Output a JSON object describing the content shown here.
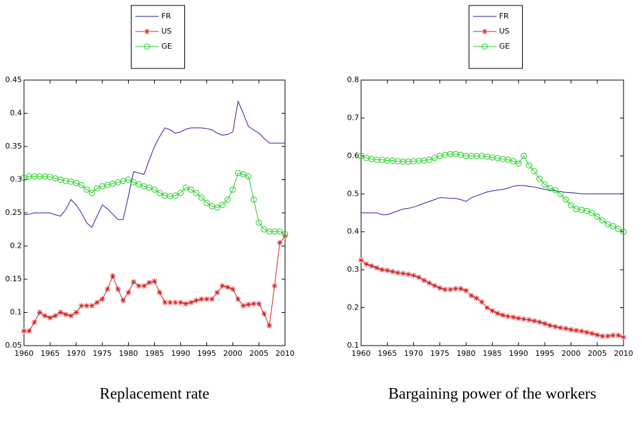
{
  "chart_data": [
    {
      "type": "line",
      "title": "Replacement rate",
      "legend": "top",
      "x": [
        1960,
        1961,
        1962,
        1963,
        1964,
        1965,
        1966,
        1967,
        1968,
        1969,
        1970,
        1971,
        1972,
        1973,
        1974,
        1975,
        1976,
        1977,
        1978,
        1979,
        1980,
        1981,
        1982,
        1983,
        1984,
        1985,
        1986,
        1987,
        1988,
        1989,
        1990,
        1991,
        1992,
        1993,
        1994,
        1995,
        1996,
        1997,
        1998,
        1999,
        2000,
        2001,
        2002,
        2003,
        2004,
        2005,
        2006,
        2007,
        2008,
        2009,
        2010
      ],
      "xlim": [
        1960,
        2010
      ],
      "xticks": [
        1960,
        1965,
        1970,
        1975,
        1980,
        1985,
        1990,
        1995,
        2000,
        2005,
        2010
      ],
      "ylim": [
        0.05,
        0.45
      ],
      "yticks": [
        0.05,
        0.1,
        0.15,
        0.2,
        0.25,
        0.3,
        0.35,
        0.4,
        0.45
      ],
      "series": [
        {
          "name": "FR",
          "color": "#1f1fa0",
          "marker": "none",
          "values": [
            0.247,
            0.248,
            0.25,
            0.25,
            0.25,
            0.25,
            0.247,
            0.245,
            0.255,
            0.27,
            0.262,
            0.25,
            0.235,
            0.228,
            0.245,
            0.262,
            0.256,
            0.248,
            0.24,
            0.24,
            0.275,
            0.312,
            0.31,
            0.308,
            0.33,
            0.35,
            0.365,
            0.378,
            0.375,
            0.37,
            0.372,
            0.376,
            0.378,
            0.378,
            0.378,
            0.377,
            0.375,
            0.37,
            0.367,
            0.368,
            0.372,
            0.418,
            0.4,
            0.38,
            0.375,
            0.37,
            0.362,
            0.355,
            0.355,
            0.355,
            0.355
          ]
        },
        {
          "name": "US",
          "color": "#d22020",
          "marker": "star",
          "values": [
            0.072,
            0.072,
            0.085,
            0.1,
            0.095,
            0.092,
            0.095,
            0.1,
            0.097,
            0.095,
            0.1,
            0.11,
            0.11,
            0.11,
            0.115,
            0.12,
            0.135,
            0.155,
            0.135,
            0.118,
            0.13,
            0.146,
            0.14,
            0.14,
            0.145,
            0.147,
            0.13,
            0.115,
            0.115,
            0.115,
            0.115,
            0.113,
            0.115,
            0.118,
            0.12,
            0.12,
            0.12,
            0.13,
            0.14,
            0.138,
            0.135,
            0.12,
            0.11,
            0.112,
            0.113,
            0.113,
            0.098,
            0.08,
            0.14,
            0.205,
            0.215
          ]
        },
        {
          "name": "GE",
          "color": "#22cc22",
          "marker": "circle",
          "values": [
            0.303,
            0.305,
            0.305,
            0.305,
            0.305,
            0.304,
            0.302,
            0.3,
            0.298,
            0.297,
            0.295,
            0.292,
            0.285,
            0.28,
            0.287,
            0.29,
            0.292,
            0.294,
            0.296,
            0.298,
            0.3,
            0.296,
            0.293,
            0.29,
            0.288,
            0.285,
            0.28,
            0.276,
            0.275,
            0.276,
            0.28,
            0.288,
            0.285,
            0.28,
            0.273,
            0.265,
            0.26,
            0.258,
            0.262,
            0.27,
            0.285,
            0.31,
            0.308,
            0.305,
            0.27,
            0.235,
            0.225,
            0.222,
            0.222,
            0.222,
            0.218
          ]
        }
      ]
    },
    {
      "type": "line",
      "title": "Bargaining power of the workers",
      "legend": "top",
      "x": [
        1960,
        1961,
        1962,
        1963,
        1964,
        1965,
        1966,
        1967,
        1968,
        1969,
        1970,
        1971,
        1972,
        1973,
        1974,
        1975,
        1976,
        1977,
        1978,
        1979,
        1980,
        1981,
        1982,
        1983,
        1984,
        1985,
        1986,
        1987,
        1988,
        1989,
        1990,
        1991,
        1992,
        1993,
        1994,
        1995,
        1996,
        1997,
        1998,
        1999,
        2000,
        2001,
        2002,
        2003,
        2004,
        2005,
        2006,
        2007,
        2008,
        2009,
        2010
      ],
      "xlim": [
        1960,
        2010
      ],
      "xticks": [
        1960,
        1965,
        1970,
        1975,
        1980,
        1985,
        1990,
        1995,
        2000,
        2005,
        2010
      ],
      "ylim": [
        0.1,
        0.8
      ],
      "yticks": [
        0.1,
        0.2,
        0.3,
        0.4,
        0.5,
        0.6,
        0.7,
        0.8
      ],
      "series": [
        {
          "name": "FR",
          "color": "#1f1fa0",
          "marker": "none",
          "values": [
            0.45,
            0.45,
            0.45,
            0.45,
            0.445,
            0.445,
            0.45,
            0.455,
            0.46,
            0.462,
            0.465,
            0.47,
            0.475,
            0.48,
            0.485,
            0.49,
            0.49,
            0.488,
            0.488,
            0.485,
            0.48,
            0.49,
            0.495,
            0.5,
            0.505,
            0.508,
            0.51,
            0.512,
            0.515,
            0.52,
            0.522,
            0.522,
            0.52,
            0.518,
            0.515,
            0.512,
            0.51,
            0.508,
            0.506,
            0.504,
            0.503,
            0.502,
            0.5,
            0.5,
            0.5,
            0.5,
            0.5,
            0.5,
            0.5,
            0.5,
            0.5
          ]
        },
        {
          "name": "US",
          "color": "#d22020",
          "marker": "star",
          "values": [
            0.325,
            0.315,
            0.31,
            0.305,
            0.3,
            0.298,
            0.295,
            0.292,
            0.29,
            0.288,
            0.285,
            0.28,
            0.272,
            0.265,
            0.258,
            0.252,
            0.248,
            0.248,
            0.25,
            0.25,
            0.245,
            0.232,
            0.225,
            0.215,
            0.2,
            0.192,
            0.185,
            0.18,
            0.177,
            0.175,
            0.172,
            0.17,
            0.168,
            0.165,
            0.162,
            0.158,
            0.153,
            0.15,
            0.147,
            0.145,
            0.142,
            0.14,
            0.138,
            0.135,
            0.132,
            0.128,
            0.125,
            0.125,
            0.127,
            0.127,
            0.122
          ]
        },
        {
          "name": "GE",
          "color": "#22cc22",
          "marker": "circle",
          "values": [
            0.6,
            0.595,
            0.592,
            0.59,
            0.59,
            0.588,
            0.588,
            0.586,
            0.585,
            0.585,
            0.586,
            0.587,
            0.588,
            0.59,
            0.595,
            0.6,
            0.603,
            0.605,
            0.605,
            0.603,
            0.6,
            0.6,
            0.6,
            0.6,
            0.598,
            0.596,
            0.594,
            0.592,
            0.59,
            0.586,
            0.58,
            0.6,
            0.575,
            0.56,
            0.54,
            0.525,
            0.515,
            0.51,
            0.5,
            0.485,
            0.47,
            0.46,
            0.458,
            0.455,
            0.45,
            0.44,
            0.43,
            0.42,
            0.415,
            0.408,
            0.4
          ]
        }
      ]
    }
  ]
}
